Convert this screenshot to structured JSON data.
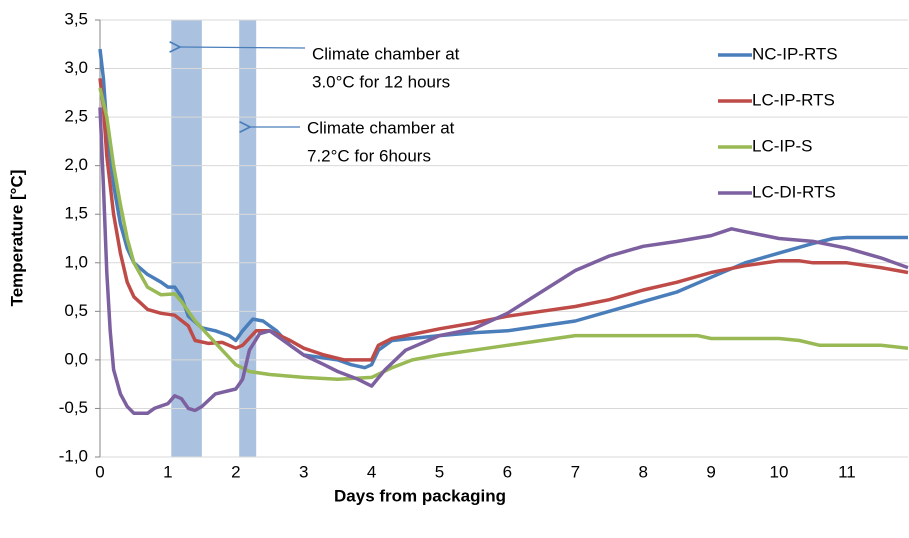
{
  "chart_data": {
    "type": "line",
    "x_label": "Days from packaging",
    "y_label": "Temperature [°C]",
    "xlim": [
      0,
      11.9
    ],
    "xticks": [
      0,
      1,
      2,
      3,
      4,
      5,
      6,
      7,
      8,
      9,
      10,
      11
    ],
    "ylim": [
      -1,
      3.5
    ],
    "yticks": [
      {
        "value": -1,
        "label": "-1,0"
      },
      {
        "value": -0.5,
        "label": "-0,5"
      },
      {
        "value": 0,
        "label": "0,0"
      },
      {
        "value": 0.5,
        "label": "0,5"
      },
      {
        "value": 1,
        "label": "1,0"
      },
      {
        "value": 1.5,
        "label": "1,5"
      },
      {
        "value": 2,
        "label": "2,0"
      },
      {
        "value": 2.5,
        "label": "2,5"
      },
      {
        "value": 3,
        "label": "3,0"
      },
      {
        "value": 3.5,
        "label": "3,5"
      }
    ],
    "grid": true,
    "legend": "right",
    "shaded_regions": [
      [
        1.05,
        1.5
      ],
      [
        2.05,
        2.3
      ]
    ],
    "shaded_color": "#95b3d7",
    "annotations": [
      {
        "lines": [
          "Climate chamber at",
          "3.0°C for 12 hours"
        ]
      },
      {
        "lines": [
          "Climate chamber at",
          "7.2°C for 6hours"
        ]
      }
    ],
    "series": [
      {
        "name": "NC-IP-RTS",
        "color": "#4a7ebb",
        "x": [
          0,
          0.05,
          0.1,
          0.2,
          0.3,
          0.4,
          0.5,
          0.7,
          0.9,
          1.0,
          1.1,
          1.2,
          1.3,
          1.5,
          1.7,
          1.9,
          2.0,
          2.1,
          2.25,
          2.4,
          2.6,
          2.8,
          3.0,
          3.5,
          3.7,
          3.9,
          4.0,
          4.1,
          4.3,
          5,
          5.5,
          6,
          6.5,
          7,
          7.5,
          8,
          8.5,
          9,
          9.5,
          10,
          10.5,
          10.8,
          11,
          11.9
        ],
        "values": [
          3.2,
          2.9,
          2.4,
          1.8,
          1.4,
          1.15,
          1.0,
          0.88,
          0.8,
          0.75,
          0.75,
          0.65,
          0.45,
          0.33,
          0.3,
          0.25,
          0.2,
          0.3,
          0.42,
          0.4,
          0.3,
          0.15,
          0.05,
          0.0,
          -0.05,
          -0.08,
          -0.05,
          0.1,
          0.2,
          0.25,
          0.28,
          0.3,
          0.35,
          0.4,
          0.5,
          0.6,
          0.7,
          0.85,
          1.0,
          1.1,
          1.2,
          1.25,
          1.26,
          1.26
        ]
      },
      {
        "name": "LC-IP-RTS",
        "color": "#be4b48",
        "x": [
          0,
          0.05,
          0.1,
          0.2,
          0.3,
          0.4,
          0.5,
          0.7,
          0.9,
          1.1,
          1.3,
          1.4,
          1.6,
          1.8,
          2.0,
          2.1,
          2.3,
          2.5,
          2.8,
          3.0,
          3.3,
          3.6,
          4.0,
          4.1,
          4.3,
          5,
          5.5,
          6,
          6.5,
          7,
          7.5,
          8,
          8.5,
          9,
          9.5,
          10,
          10.3,
          10.5,
          11,
          11.5,
          11.9
        ],
        "values": [
          2.9,
          2.6,
          2.1,
          1.5,
          1.1,
          0.8,
          0.65,
          0.52,
          0.48,
          0.46,
          0.35,
          0.2,
          0.17,
          0.18,
          0.12,
          0.15,
          0.3,
          0.3,
          0.2,
          0.12,
          0.05,
          0.0,
          0.0,
          0.15,
          0.22,
          0.32,
          0.38,
          0.45,
          0.5,
          0.55,
          0.62,
          0.72,
          0.8,
          0.9,
          0.97,
          1.02,
          1.02,
          1.0,
          1.0,
          0.95,
          0.9
        ]
      },
      {
        "name": "LC-IP-S",
        "color": "#98b954",
        "x": [
          0,
          0.1,
          0.2,
          0.3,
          0.4,
          0.5,
          0.7,
          0.9,
          1.1,
          1.2,
          1.4,
          1.6,
          1.8,
          2.0,
          2.2,
          2.5,
          3.0,
          3.5,
          4.0,
          4.3,
          4.6,
          5,
          5.5,
          6,
          6.5,
          7,
          8,
          8.8,
          9,
          10,
          10.3,
          10.6,
          11,
          11.5,
          11.9
        ],
        "values": [
          2.8,
          2.5,
          2.0,
          1.6,
          1.25,
          1.0,
          0.75,
          0.67,
          0.68,
          0.6,
          0.4,
          0.25,
          0.1,
          -0.05,
          -0.12,
          -0.15,
          -0.18,
          -0.2,
          -0.18,
          -0.08,
          0.0,
          0.05,
          0.1,
          0.15,
          0.2,
          0.25,
          0.25,
          0.25,
          0.22,
          0.22,
          0.2,
          0.15,
          0.15,
          0.15,
          0.12
        ]
      },
      {
        "name": "LC-DI-RTS",
        "color": "#7d60a0",
        "x": [
          0,
          0.05,
          0.1,
          0.15,
          0.2,
          0.3,
          0.4,
          0.5,
          0.7,
          0.8,
          1.0,
          1.1,
          1.2,
          1.3,
          1.4,
          1.5,
          1.7,
          2.0,
          2.1,
          2.2,
          2.35,
          2.5,
          2.8,
          3.0,
          3.3,
          3.5,
          3.8,
          4.0,
          4.2,
          4.5,
          5,
          5.5,
          6,
          6.5,
          7,
          7.5,
          8,
          8.5,
          9,
          9.3,
          9.5,
          10,
          10.5,
          11,
          11.5,
          11.9
        ],
        "values": [
          2.6,
          1.8,
          0.9,
          0.3,
          -0.1,
          -0.35,
          -0.48,
          -0.55,
          -0.55,
          -0.5,
          -0.45,
          -0.37,
          -0.4,
          -0.5,
          -0.52,
          -0.48,
          -0.35,
          -0.3,
          -0.2,
          0.1,
          0.27,
          0.3,
          0.15,
          0.05,
          -0.05,
          -0.12,
          -0.2,
          -0.27,
          -0.1,
          0.1,
          0.25,
          0.32,
          0.48,
          0.7,
          0.92,
          1.07,
          1.17,
          1.22,
          1.28,
          1.35,
          1.32,
          1.25,
          1.22,
          1.15,
          1.05,
          0.95
        ]
      }
    ]
  }
}
